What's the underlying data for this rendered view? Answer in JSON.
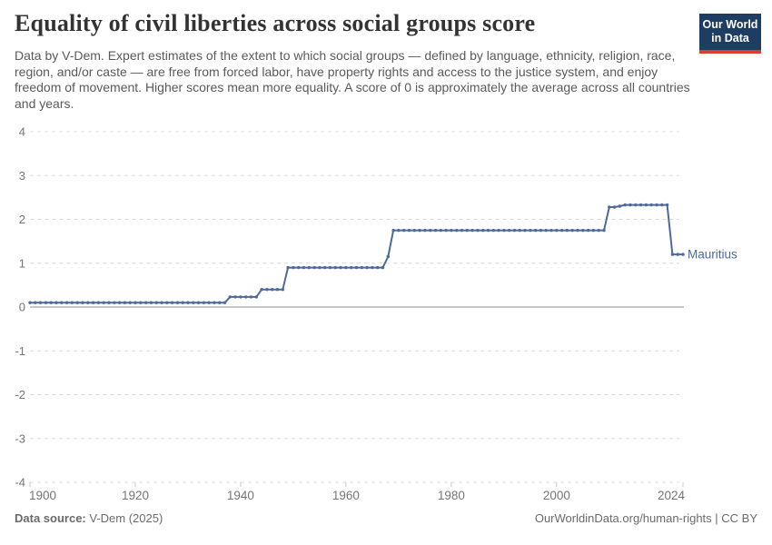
{
  "header": {
    "title": "Equality of civil liberties across social groups score",
    "subtitle": "Data by V-Dem. Expert estimates of the extent to which social groups — defined by language, ethnicity, religion, race, region, and/or caste — are free from forced labor, have property rights and access to the justice system, and enjoy freedom of movement. Higher scores mean more equality. A score of 0 is approximately the average across all countries and years.",
    "logo": {
      "line1": "Our World",
      "line2": "in Data",
      "bg_color": "#1d3d63",
      "stripe_color": "#dc3e32"
    }
  },
  "chart_data": {
    "type": "line",
    "title": "Equality of civil liberties across social groups score",
    "entity_label": "Mauritius",
    "x_axis": {
      "min": 1900,
      "max": 2024,
      "ticks": [
        1900,
        1920,
        1940,
        1960,
        1980,
        2000,
        2024
      ]
    },
    "y_axis": {
      "min": -4,
      "max": 4,
      "ticks": [
        4,
        3,
        2,
        1,
        0,
        -1,
        -2,
        -3,
        -4
      ]
    },
    "grid": {
      "style": "dashed",
      "color": "#dcdcdc",
      "zero_line_color": "#b3b3b3",
      "tick_color": "#c9c9c9",
      "axis_text_color": "#757575"
    },
    "series": [
      {
        "name": "Mauritius",
        "color": "#4C6A9C",
        "points": [
          [
            1900,
            0.1
          ],
          [
            1901,
            0.1
          ],
          [
            1902,
            0.1
          ],
          [
            1903,
            0.1
          ],
          [
            1904,
            0.1
          ],
          [
            1905,
            0.1
          ],
          [
            1906,
            0.1
          ],
          [
            1907,
            0.1
          ],
          [
            1908,
            0.1
          ],
          [
            1909,
            0.1
          ],
          [
            1910,
            0.1
          ],
          [
            1911,
            0.1
          ],
          [
            1912,
            0.1
          ],
          [
            1913,
            0.1
          ],
          [
            1914,
            0.1
          ],
          [
            1915,
            0.1
          ],
          [
            1916,
            0.1
          ],
          [
            1917,
            0.1
          ],
          [
            1918,
            0.1
          ],
          [
            1919,
            0.1
          ],
          [
            1920,
            0.1
          ],
          [
            1921,
            0.1
          ],
          [
            1922,
            0.1
          ],
          [
            1923,
            0.1
          ],
          [
            1924,
            0.1
          ],
          [
            1925,
            0.1
          ],
          [
            1926,
            0.1
          ],
          [
            1927,
            0.1
          ],
          [
            1928,
            0.1
          ],
          [
            1929,
            0.1
          ],
          [
            1930,
            0.1
          ],
          [
            1931,
            0.1
          ],
          [
            1932,
            0.1
          ],
          [
            1933,
            0.1
          ],
          [
            1934,
            0.1
          ],
          [
            1935,
            0.1
          ],
          [
            1936,
            0.1
          ],
          [
            1937,
            0.1
          ],
          [
            1938,
            0.23
          ],
          [
            1939,
            0.23
          ],
          [
            1940,
            0.23
          ],
          [
            1941,
            0.23
          ],
          [
            1942,
            0.23
          ],
          [
            1943,
            0.23
          ],
          [
            1944,
            0.4
          ],
          [
            1945,
            0.4
          ],
          [
            1946,
            0.4
          ],
          [
            1947,
            0.4
          ],
          [
            1948,
            0.4
          ],
          [
            1949,
            0.9
          ],
          [
            1950,
            0.9
          ],
          [
            1951,
            0.9
          ],
          [
            1952,
            0.9
          ],
          [
            1953,
            0.9
          ],
          [
            1954,
            0.9
          ],
          [
            1955,
            0.9
          ],
          [
            1956,
            0.9
          ],
          [
            1957,
            0.9
          ],
          [
            1958,
            0.9
          ],
          [
            1959,
            0.9
          ],
          [
            1960,
            0.9
          ],
          [
            1961,
            0.9
          ],
          [
            1962,
            0.9
          ],
          [
            1963,
            0.9
          ],
          [
            1964,
            0.9
          ],
          [
            1965,
            0.9
          ],
          [
            1966,
            0.9
          ],
          [
            1967,
            0.9
          ],
          [
            1968,
            1.15
          ],
          [
            1969,
            1.75
          ],
          [
            1970,
            1.75
          ],
          [
            1971,
            1.75
          ],
          [
            1972,
            1.75
          ],
          [
            1973,
            1.75
          ],
          [
            1974,
            1.75
          ],
          [
            1975,
            1.75
          ],
          [
            1976,
            1.75
          ],
          [
            1977,
            1.75
          ],
          [
            1978,
            1.75
          ],
          [
            1979,
            1.75
          ],
          [
            1980,
            1.75
          ],
          [
            1981,
            1.75
          ],
          [
            1982,
            1.75
          ],
          [
            1983,
            1.75
          ],
          [
            1984,
            1.75
          ],
          [
            1985,
            1.75
          ],
          [
            1986,
            1.75
          ],
          [
            1987,
            1.75
          ],
          [
            1988,
            1.75
          ],
          [
            1989,
            1.75
          ],
          [
            1990,
            1.75
          ],
          [
            1991,
            1.75
          ],
          [
            1992,
            1.75
          ],
          [
            1993,
            1.75
          ],
          [
            1994,
            1.75
          ],
          [
            1995,
            1.75
          ],
          [
            1996,
            1.75
          ],
          [
            1997,
            1.75
          ],
          [
            1998,
            1.75
          ],
          [
            1999,
            1.75
          ],
          [
            2000,
            1.75
          ],
          [
            2001,
            1.75
          ],
          [
            2002,
            1.75
          ],
          [
            2003,
            1.75
          ],
          [
            2004,
            1.75
          ],
          [
            2005,
            1.75
          ],
          [
            2006,
            1.75
          ],
          [
            2007,
            1.75
          ],
          [
            2008,
            1.75
          ],
          [
            2009,
            1.75
          ],
          [
            2010,
            2.28
          ],
          [
            2011,
            2.28
          ],
          [
            2012,
            2.3
          ],
          [
            2013,
            2.33
          ],
          [
            2014,
            2.33
          ],
          [
            2015,
            2.33
          ],
          [
            2016,
            2.33
          ],
          [
            2017,
            2.33
          ],
          [
            2018,
            2.33
          ],
          [
            2019,
            2.33
          ],
          [
            2020,
            2.33
          ],
          [
            2021,
            2.33
          ],
          [
            2022,
            1.2
          ],
          [
            2023,
            1.2
          ],
          [
            2024,
            1.2
          ]
        ]
      }
    ]
  },
  "footer": {
    "source_label": "Data source:",
    "source_value": "V-Dem (2025)",
    "credit": "OurWorldinData.org/human-rights | CC BY"
  }
}
